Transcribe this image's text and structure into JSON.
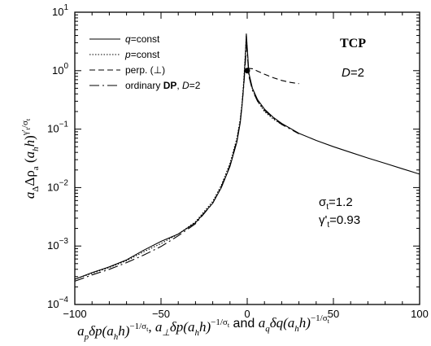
{
  "chart_data": {
    "type": "line",
    "title": "",
    "xlabel": "a_p δp(a_h h)^{-1/σ_t}, a_⊥ δp(a_h h)^{-1/σ_t} and a_q δq(a_h h)^{-1/σ_t}",
    "ylabel": "a_Δ Δρ_a (a_h h)^{γ'/σ_t}",
    "xlim": [
      -100,
      100
    ],
    "ylim": [
      0.0001,
      10
    ],
    "yscale": "log",
    "grid": false,
    "legend_position": "top-left",
    "x_ticks": [
      {
        "value": -100,
        "label": "−100"
      },
      {
        "value": -50,
        "label": "−50"
      },
      {
        "value": 0,
        "label": "0"
      },
      {
        "value": 50,
        "label": "50"
      },
      {
        "value": 100,
        "label": "100"
      }
    ],
    "y_ticks": [
      {
        "value": 0.0001,
        "base": "10",
        "exp": "−4"
      },
      {
        "value": 0.001,
        "base": "10",
        "exp": "−3"
      },
      {
        "value": 0.01,
        "base": "10",
        "exp": "−2"
      },
      {
        "value": 0.1,
        "base": "10",
        "exp": "−1"
      },
      {
        "value": 1,
        "base": "10",
        "exp": "0"
      },
      {
        "value": 10,
        "base": "10",
        "exp": "1"
      }
    ],
    "annotations": {
      "model": "TCP",
      "dimension": "D=2",
      "sigma": "σt=1.2",
      "gamma": "γ't=0.93"
    },
    "marker": {
      "x": 0,
      "y": 1.0
    },
    "series": [
      {
        "name": "q=const",
        "style": "solid",
        "points": [
          [
            -100,
            0.00027
          ],
          [
            -90,
            0.00035
          ],
          [
            -80,
            0.00044
          ],
          [
            -70,
            0.00058
          ],
          [
            -60,
            0.00085
          ],
          [
            -50,
            0.0012
          ],
          [
            -40,
            0.0016
          ],
          [
            -30,
            0.0025
          ],
          [
            -20,
            0.0054
          ],
          [
            -15,
            0.01
          ],
          [
            -10,
            0.023
          ],
          [
            -6,
            0.06
          ],
          [
            -4,
            0.13
          ],
          [
            -3,
            0.25
          ],
          [
            -2,
            0.6
          ],
          [
            -1,
            2.0
          ],
          [
            -0.5,
            4.3
          ],
          [
            0,
            2.5
          ],
          [
            1,
            0.9
          ],
          [
            3,
            0.5
          ],
          [
            6,
            0.32
          ],
          [
            10,
            0.22
          ],
          [
            15,
            0.16
          ],
          [
            20,
            0.125
          ],
          [
            30,
            0.085
          ],
          [
            40,
            0.064
          ],
          [
            50,
            0.05
          ],
          [
            60,
            0.04
          ],
          [
            70,
            0.032
          ],
          [
            80,
            0.026
          ],
          [
            90,
            0.021
          ],
          [
            100,
            0.017
          ]
        ]
      },
      {
        "name": "p=const",
        "style": "dotted",
        "points": [
          [
            -100,
            0.00027
          ],
          [
            -90,
            0.00034
          ],
          [
            -80,
            0.00043
          ],
          [
            -70,
            0.00056
          ],
          [
            -60,
            0.0008
          ],
          [
            -50,
            0.0011
          ],
          [
            -40,
            0.0016
          ],
          [
            -30,
            0.0026
          ],
          [
            -20,
            0.0058
          ],
          [
            -15,
            0.011
          ],
          [
            -10,
            0.026
          ],
          [
            -6,
            0.07
          ],
          [
            -4,
            0.15
          ],
          [
            -3,
            0.28
          ],
          [
            -2,
            0.7
          ],
          [
            -1,
            2.2
          ],
          [
            -0.5,
            4.0
          ],
          [
            0,
            2.3
          ],
          [
            1,
            0.85
          ],
          [
            3,
            0.48
          ],
          [
            6,
            0.3
          ],
          [
            10,
            0.2
          ],
          [
            15,
            0.15
          ],
          [
            20,
            0.12
          ]
        ]
      },
      {
        "name": "perp. (⊥)",
        "style": "dashed",
        "points": [
          [
            0,
            1.1
          ],
          [
            3,
            1.08
          ],
          [
            6,
            0.98
          ],
          [
            10,
            0.87
          ],
          [
            15,
            0.76
          ],
          [
            20,
            0.68
          ],
          [
            25,
            0.63
          ],
          [
            30,
            0.6
          ]
        ]
      },
      {
        "name": "ordinary DP, D=2",
        "style": "dash-dot",
        "points": [
          [
            -100,
            0.00025
          ],
          [
            -90,
            0.00032
          ],
          [
            -80,
            0.0004
          ],
          [
            -70,
            0.00052
          ],
          [
            -60,
            0.0007
          ],
          [
            -50,
            0.00098
          ],
          [
            -40,
            0.0015
          ],
          [
            -30,
            0.0024
          ],
          [
            -20,
            0.0054
          ],
          [
            -15,
            0.0105
          ],
          [
            -10,
            0.024
          ],
          [
            -6,
            0.065
          ],
          [
            -4,
            0.14
          ],
          [
            -3,
            0.26
          ],
          [
            -2,
            0.55
          ],
          [
            -1,
            1.5
          ],
          [
            -0.5,
            2.8
          ],
          [
            0,
            2.0
          ],
          [
            1,
            0.8
          ],
          [
            3,
            0.46
          ],
          [
            6,
            0.3
          ],
          [
            10,
            0.21
          ],
          [
            15,
            0.155
          ],
          [
            20,
            0.12
          ],
          [
            30,
            0.083
          ]
        ]
      }
    ]
  },
  "legend": {
    "q_label": "=const",
    "q_var": "q",
    "p_label": "=const",
    "p_var": "p",
    "perp_label": "perp. (⊥)",
    "dp_prefix": "ordinary ",
    "dp_bold": "DP",
    "dp_suffix": ", ",
    "dp_dim": "D",
    "dp_dim_value": "=2"
  },
  "y_axis_label": {
    "a": "a",
    "a_sub": "Δ",
    "delta_rho": "Δρ",
    "rho_sub": "a",
    "open": " (",
    "ah": "a",
    "ah_sub": "h",
    "h": "h",
    "close": ")",
    "exp_num": "γ'",
    "exp_sub": "t",
    "exp_slash": "/σ",
    "exp_sub2": "t"
  },
  "x_axis_label": {
    "ap": "a",
    "ap_sub": "p",
    "dp1": "δp(a",
    "h_sub": "h",
    "h_close": "h)",
    "exp": "−1/σ",
    "exp_sub": "t",
    "comma": ", ",
    "aperp": "a",
    "aperp_sub": "⊥",
    "and": " and ",
    "aq": "a",
    "aq_sub": "q",
    "dq": "δq(a"
  }
}
